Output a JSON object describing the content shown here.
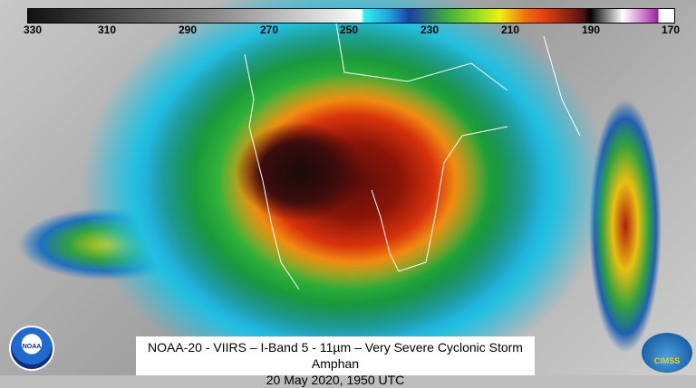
{
  "colorbar": {
    "ticks": [
      "330",
      "310",
      "290",
      "270",
      "250",
      "230",
      "210",
      "190",
      "170"
    ]
  },
  "caption": {
    "line1": "NOAA-20 - VIIRS – I-Band 5 - 11µm – Very Severe Cyclonic Storm Amphan",
    "line2": "20 May 2020, 1950 UTC"
  },
  "logos": {
    "left": "NOAA",
    "right": "CIMSS"
  }
}
